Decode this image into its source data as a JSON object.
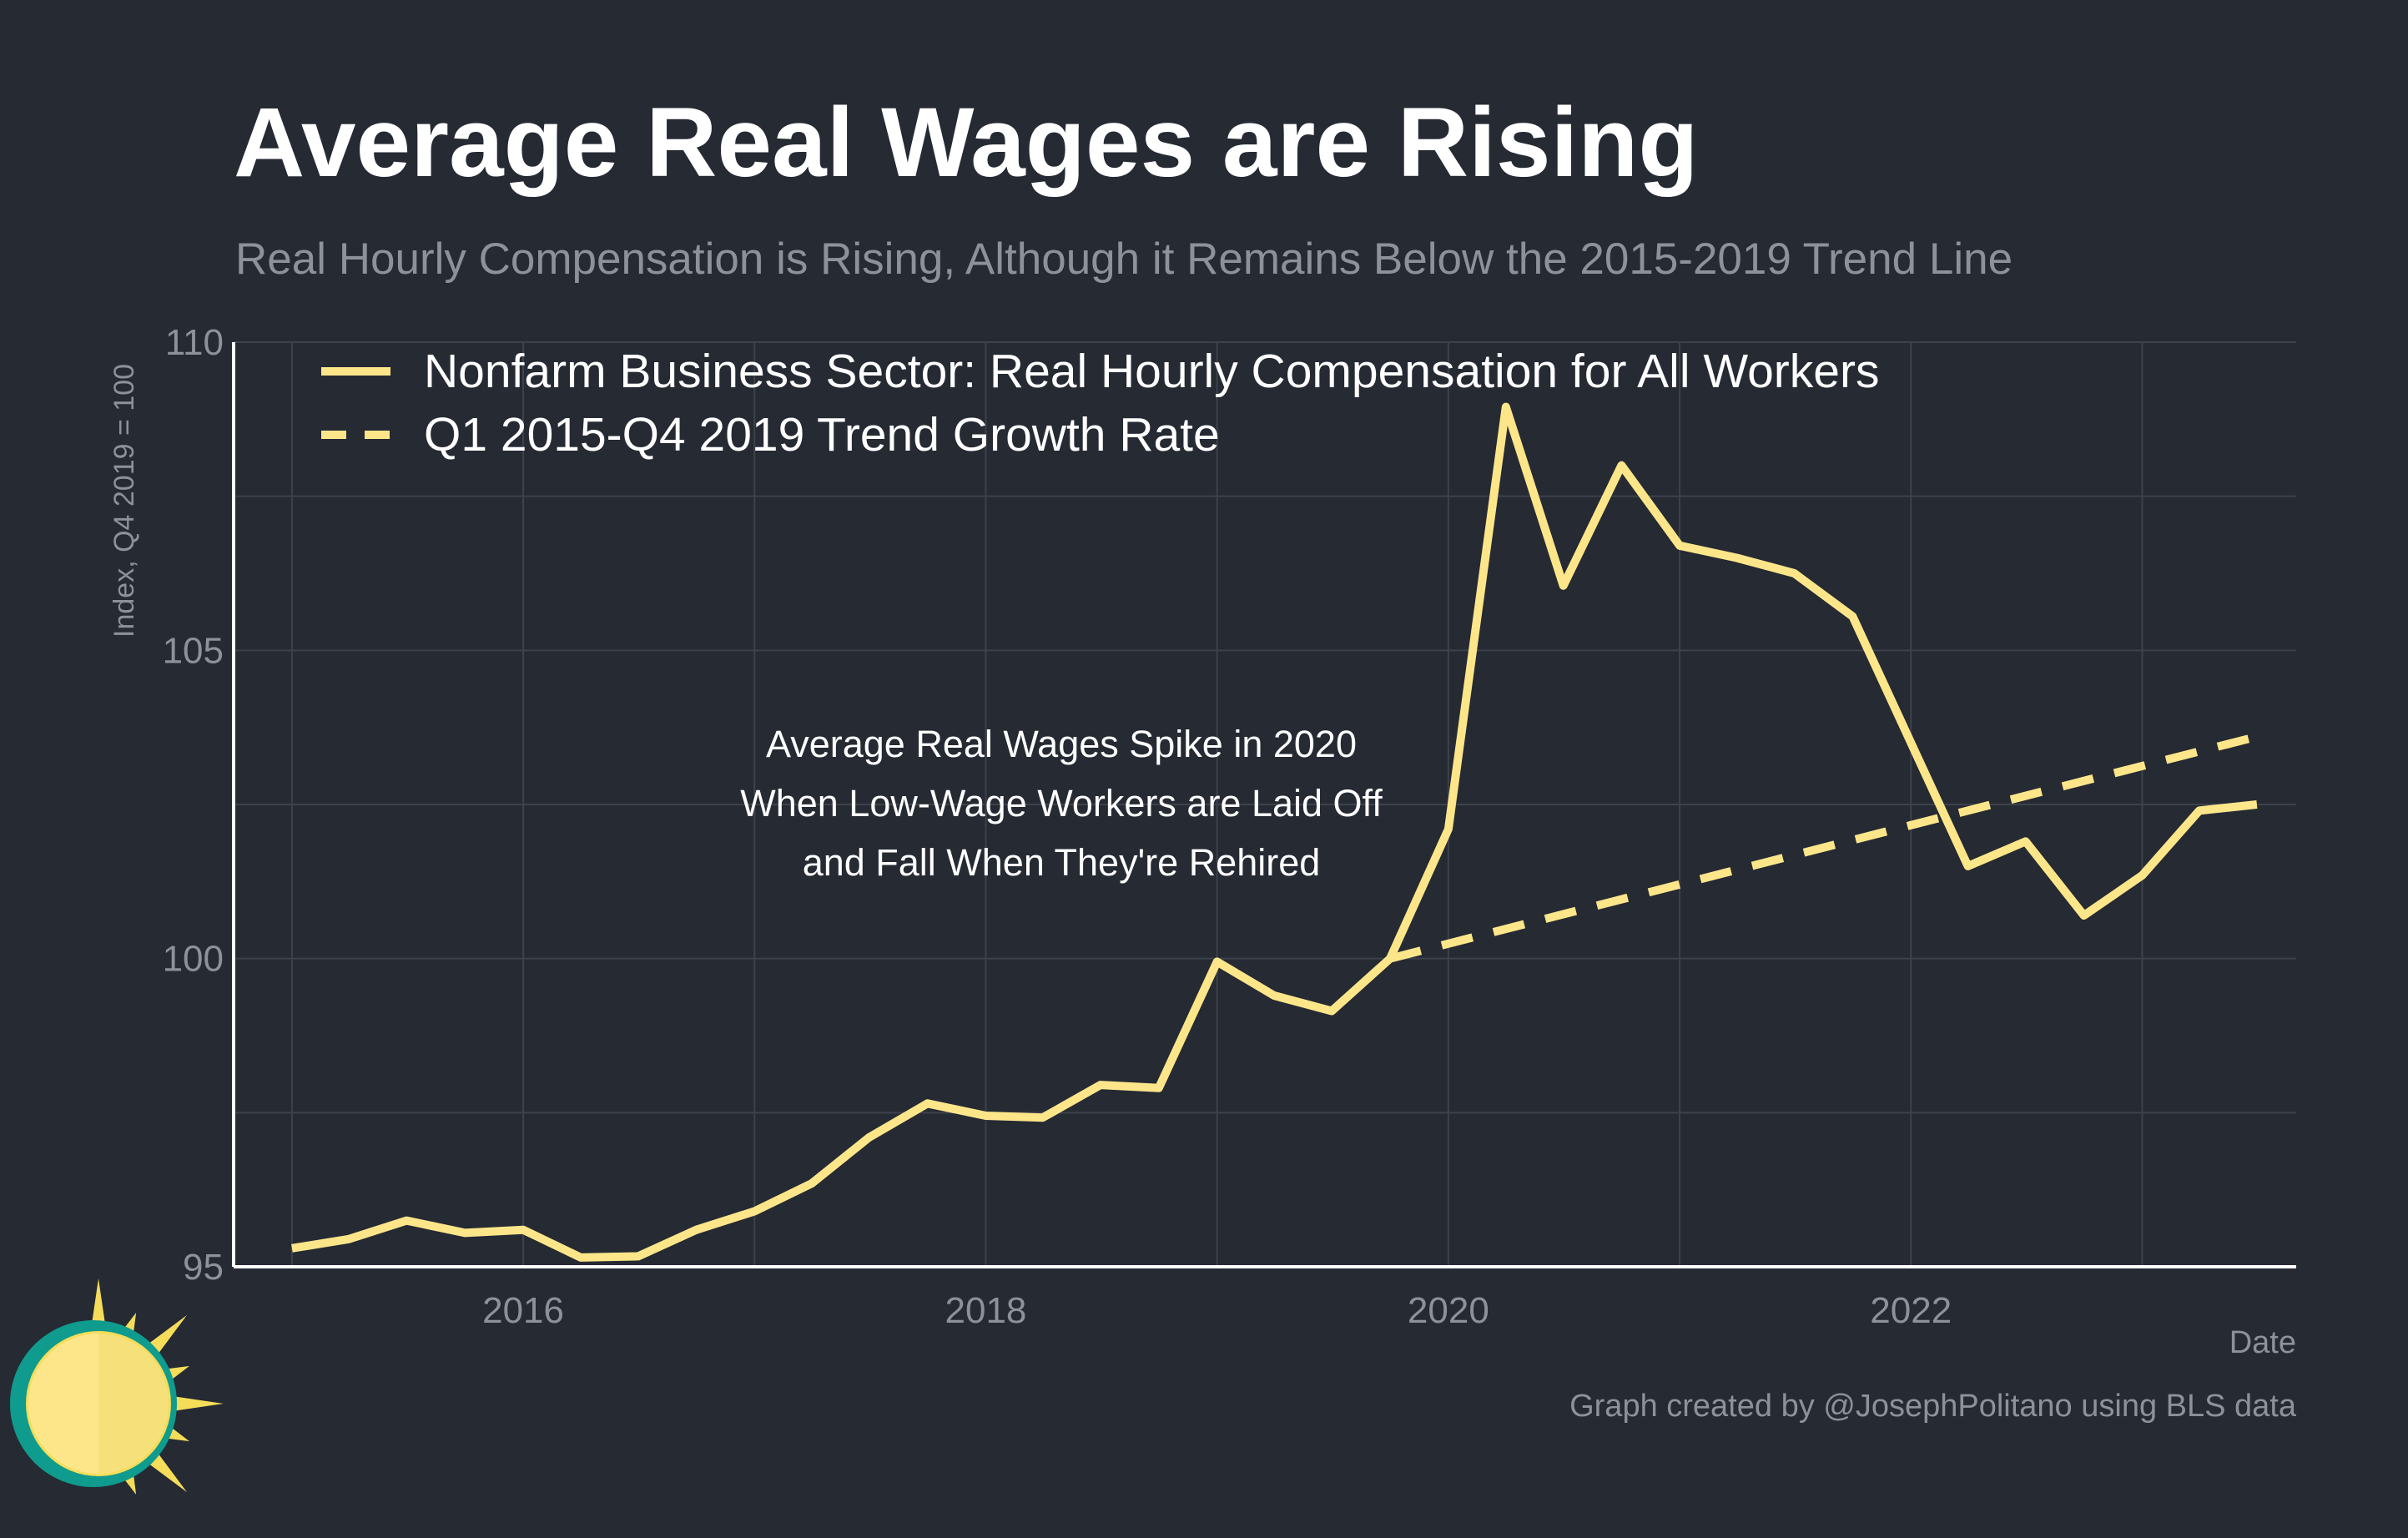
{
  "title": "Average Real Wages are Rising",
  "subtitle": "Real Hourly Compensation is Rising, Although it Remains Below the 2015-2019 Trend Line",
  "credit": "Graph created by @JosephPolitano using BLS data",
  "colors": {
    "background": "#252a33",
    "line": "#fde68a",
    "grid": "#3d424b",
    "axis": "#ffffff",
    "muted": "#8d9199"
  },
  "chart_data": {
    "type": "line",
    "xlabel": "Date",
    "ylabel": "Index, Q4 2019 = 100",
    "ylim": [
      95,
      110
    ],
    "xlim": [
      "2014-10-01",
      "2023-09-01"
    ],
    "x_ticks": [
      2016,
      2018,
      2020,
      2022
    ],
    "y_ticks": [
      95,
      100,
      105,
      110
    ],
    "grid": true,
    "legend_position": "top-left",
    "annotation": [
      "Average Real Wages Spike in 2020",
      "When Low-Wage Workers are Laid Off",
      "and Fall When They're Rehired"
    ],
    "series": [
      {
        "name": "Nonfarm Business Sector: Real Hourly Compensation for All Workers",
        "style": "solid",
        "x": [
          "2015-01-01",
          "2015-04-01",
          "2015-07-01",
          "2015-10-01",
          "2016-01-01",
          "2016-04-01",
          "2016-07-01",
          "2016-10-01",
          "2017-01-01",
          "2017-04-01",
          "2017-07-01",
          "2017-10-01",
          "2018-01-01",
          "2018-04-01",
          "2018-07-01",
          "2018-10-01",
          "2019-01-01",
          "2019-04-01",
          "2019-07-01",
          "2019-10-01",
          "2020-01-01",
          "2020-04-01",
          "2020-07-01",
          "2020-10-01",
          "2021-01-01",
          "2021-04-01",
          "2021-07-01",
          "2021-10-01",
          "2022-01-01",
          "2022-04-01",
          "2022-07-01",
          "2022-10-01",
          "2023-01-01",
          "2023-04-01",
          "2023-07-01"
        ],
        "values": [
          95.3,
          95.45,
          95.75,
          95.55,
          95.6,
          95.15,
          95.17,
          95.6,
          95.9,
          96.35,
          97.1,
          97.65,
          97.45,
          97.42,
          97.95,
          97.9,
          99.95,
          99.4,
          99.15,
          100.0,
          102.1,
          108.95,
          106.05,
          108.0,
          106.7,
          106.5,
          106.25,
          105.55,
          103.5,
          101.5,
          101.9,
          100.7,
          101.35,
          102.4,
          102.5
        ]
      },
      {
        "name": "Q1 2015-Q4 2019 Trend Growth Rate",
        "style": "dashed",
        "x": [
          "2019-10-01",
          "2023-07-01"
        ],
        "values": [
          100.0,
          103.6
        ]
      }
    ]
  }
}
